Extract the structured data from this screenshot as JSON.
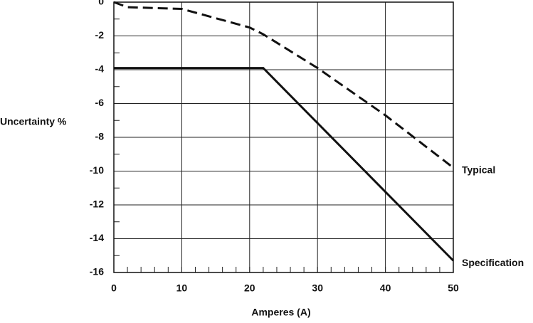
{
  "chart_data": {
    "type": "line",
    "xlabel": "Amperes (A)",
    "ylabel": "Uncertainty %",
    "xlim": [
      0,
      50
    ],
    "xticks": [
      0,
      10,
      20,
      30,
      40,
      50
    ],
    "ylim": [
      -16,
      0
    ],
    "yticks": [
      0,
      -2,
      -4,
      -6,
      -8,
      -10,
      -12,
      -14,
      -16
    ],
    "grid": true,
    "series": [
      {
        "name": "Typical",
        "color": "#111111",
        "dashed": true,
        "x": [
          0,
          2,
          10,
          20,
          22,
          30,
          40,
          50
        ],
        "values": [
          0,
          -0.3,
          -0.4,
          -1.5,
          -1.9,
          -3.9,
          -6.7,
          -9.8
        ]
      },
      {
        "name": "Specification",
        "color": "#111111",
        "dashed": false,
        "x": [
          0,
          22,
          50
        ],
        "values": [
          -3.9,
          -3.9,
          -15.3
        ]
      }
    ]
  }
}
